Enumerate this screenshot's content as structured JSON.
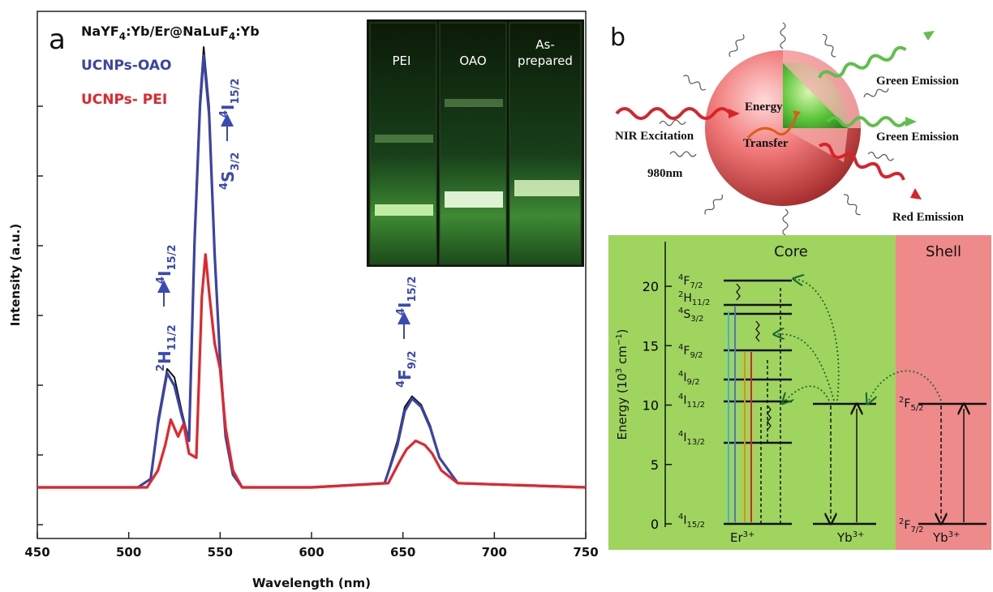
{
  "panel_a": {
    "letter": "a",
    "title": {
      "pre": "NaYF",
      "s1": "4",
      "mid": ":Yb/Er@NaLuF",
      "s2": "4",
      "post": ":Yb"
    },
    "xlabel": "Wavelength (nm)",
    "ylabel": "Intensity (a.u.)",
    "legend": {
      "oao": "UCNPs-OAO",
      "pei": "UCNPs- PEI"
    },
    "colors": {
      "oao": "#3a44a8",
      "pei": "#e8242b",
      "ref": "#111111",
      "label": "#3a4ab4"
    },
    "transitions": [
      {
        "upper": "2",
        "upperSym": "H",
        "upperSub": "11/2",
        "lower": "4",
        "lowerSym": "I",
        "lowerSub": "15/2"
      },
      {
        "upper": "4",
        "upperSym": "S",
        "upperSub": "3/2",
        "lower": "4",
        "lowerSym": "I",
        "lowerSub": "15/2"
      },
      {
        "upper": "4",
        "upperSym": "F",
        "upperSub": "9/2",
        "lower": "4",
        "lowerSym": "I",
        "lowerSub": "15/2"
      }
    ],
    "inset_labels": [
      "PEI",
      "OAO",
      "As-",
      "prepared"
    ]
  },
  "chart_data": {
    "type": "line",
    "xlabel": "Wavelength (nm)",
    "ylabel": "Intensity (a.u.)",
    "xlim": [
      450,
      750
    ],
    "xticks": [
      450,
      500,
      550,
      600,
      650,
      700,
      750
    ],
    "yticks_labeled": false,
    "series": [
      {
        "name": "UCNPs-OAO",
        "x": [
          450,
          505,
          512,
          516,
          521,
          525,
          529,
          533,
          536,
          539,
          541,
          544,
          547,
          550,
          553,
          557,
          562,
          600,
          640,
          647,
          651,
          655,
          660,
          665,
          670,
          680,
          750
        ],
        "y": [
          0,
          0,
          2,
          15,
          27,
          24,
          17,
          11,
          58,
          90,
          102,
          88,
          55,
          30,
          12,
          3,
          0,
          0,
          1,
          10,
          18,
          21,
          19,
          14,
          7,
          1,
          0
        ]
      },
      {
        "name": "UCNPs- PEI",
        "x": [
          450,
          510,
          516,
          520,
          523,
          527,
          530,
          533,
          537,
          540,
          542,
          544,
          547,
          550,
          553,
          557,
          562,
          600,
          642,
          648,
          652,
          657,
          662,
          666,
          671,
          680,
          750
        ],
        "y": [
          0,
          0,
          4,
          10,
          16,
          12,
          15,
          8,
          7,
          45,
          55,
          46,
          34,
          28,
          14,
          4,
          0,
          0,
          1,
          6,
          9,
          11,
          10,
          8,
          4,
          1,
          0
        ]
      },
      {
        "x": [
          450,
          505,
          512,
          516,
          521,
          525,
          529,
          533,
          536,
          539,
          541,
          544,
          547,
          550,
          553,
          557,
          562,
          600,
          640,
          647,
          651,
          655,
          660,
          665,
          670,
          680,
          750
        ],
        "y": [
          0,
          0,
          2,
          16,
          28,
          26,
          18,
          11,
          60,
          92,
          104,
          90,
          56,
          31,
          12,
          3,
          0,
          0,
          1,
          11,
          19,
          21.5,
          19.5,
          14.5,
          7,
          1,
          0
        ]
      }
    ]
  },
  "panel_b": {
    "letter": "b",
    "emissions": [
      "Green Emission",
      "Green Emission",
      "Red Emission"
    ],
    "excitation": "NIR Excitation",
    "wavelength": "980nm",
    "energy_labels": [
      "Energy",
      "Transfer"
    ],
    "core_label": "Core",
    "shell_label": "Shell",
    "energy_axis": {
      "pre": "Energy (10",
      "sup": "3",
      "post": " cm",
      "sup2": "−1",
      "end": ")"
    },
    "energy_ticks": [
      "0",
      "5",
      "10",
      "15",
      "20"
    ],
    "er_levels": [
      {
        "n": "4",
        "s": "F",
        "j": "7/2"
      },
      {
        "n": "2",
        "s": "H",
        "j": "11/2"
      },
      {
        "n": "4",
        "s": "S",
        "j": "3/2"
      },
      {
        "n": "4",
        "s": "F",
        "j": "9/2"
      },
      {
        "n": "4",
        "s": "I",
        "j": "9/2"
      },
      {
        "n": "4",
        "s": "I",
        "j": "11/2"
      },
      {
        "n": "4",
        "s": "I",
        "j": "13/2"
      },
      {
        "n": "4",
        "s": "I",
        "j": "15/2"
      }
    ],
    "yb_levels": [
      {
        "n": "2",
        "s": "F",
        "j": "5/2"
      },
      {
        "n": "2",
        "s": "F",
        "j": "7/2"
      }
    ],
    "ions": [
      {
        "sym": "Er",
        "sup": "3+"
      },
      {
        "sym": "Yb",
        "sup": "3+"
      },
      {
        "sym": "Yb",
        "sup": "3+"
      }
    ],
    "colors": {
      "core_bg": "#9fd45f",
      "shell_bg": "#ef8a8a",
      "green": "#5cc04a",
      "red": "#d8232a"
    }
  }
}
